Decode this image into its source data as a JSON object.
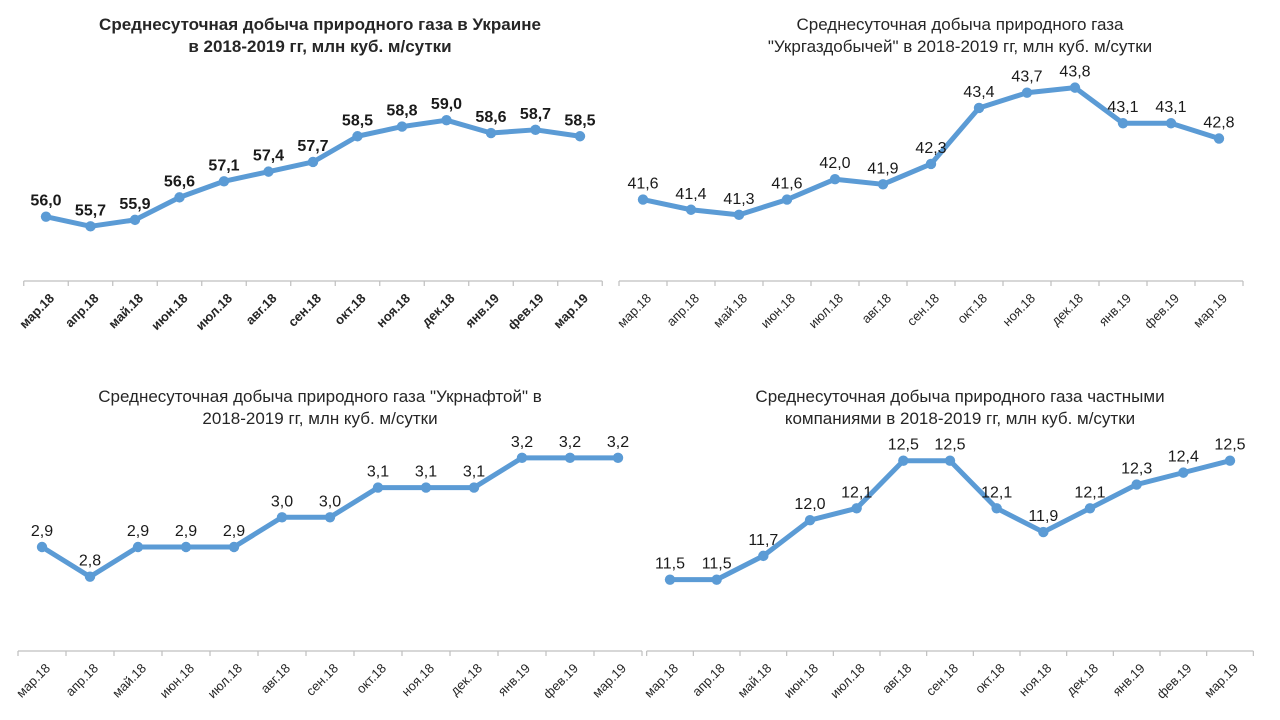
{
  "page": {
    "background": "#FFFFFF",
    "layout": "2x2 grid of line charts",
    "decimal_separator": ","
  },
  "colors": {
    "line": "#5B9BD5",
    "axis": "#BFBFBF",
    "title_text": "#262626",
    "label_text": "#1A1A1A"
  },
  "chart_data": [
    {
      "type": "line",
      "title": "Среднесуточная добыча природного газа в Украине в 2018-2019 гг, млн куб. м/сутки",
      "title_lines": [
        "Среднесуточная добыча природного газа в Украине",
        "в 2018-2019 гг, млн куб. м/сутки"
      ],
      "categories": [
        "мар.18",
        "апр.18",
        "май.18",
        "июн.18",
        "июл.18",
        "авг.18",
        "сен.18",
        "окт.18",
        "ноя.18",
        "дек.18",
        "янв.19",
        "фев.19",
        "мар.19"
      ],
      "values": [
        56.0,
        55.7,
        55.9,
        56.6,
        57.1,
        57.4,
        57.7,
        58.5,
        58.8,
        59.0,
        58.6,
        58.7,
        58.5
      ],
      "xlabel": "",
      "ylabel": "",
      "ylim": [
        54,
        60
      ],
      "grid": false,
      "legend": "none",
      "line_color": "#5B9BD5",
      "marker": "circle",
      "data_labels": "above",
      "bold_style": true
    },
    {
      "type": "line",
      "title": "Среднесуточная добыча природного газа \"Укргаздобычей\" в 2018-2019 гг, млн куб. м/сутки",
      "title_lines": [
        "Среднесуточная добыча природного газа",
        "\"Укргаздобычей\" в 2018-2019 гг, млн куб. м/сутки"
      ],
      "categories": [
        "мар.18",
        "апр.18",
        "май.18",
        "июн.18",
        "июл.18",
        "авг.18",
        "сен.18",
        "окт.18",
        "ноя.18",
        "дек.18",
        "янв.19",
        "фев.19",
        "мар.19"
      ],
      "values": [
        41.6,
        41.4,
        41.3,
        41.6,
        42.0,
        41.9,
        42.3,
        43.4,
        43.7,
        43.8,
        43.1,
        43.1,
        42.8
      ],
      "xlabel": "",
      "ylabel": "",
      "ylim": [
        40,
        44.5
      ],
      "grid": false,
      "legend": "none",
      "line_color": "#5B9BD5",
      "marker": "circle",
      "data_labels": "above",
      "bold_style": false
    },
    {
      "type": "line",
      "title": "Среднесуточная добыча природного газа \"Укрнафтой\" в 2018-2019 гг, млн куб. м/сутки",
      "title_lines": [
        "Среднесуточная добыча природного газа \"Укрнафтой\" в",
        "2018-2019 гг, млн куб. м/сутки"
      ],
      "categories": [
        "мар.18",
        "апр.18",
        "май.18",
        "июн.18",
        "июл.18",
        "авг.18",
        "сен.18",
        "окт.18",
        "ноя.18",
        "дек.18",
        "янв.19",
        "фев.19",
        "мар.19"
      ],
      "values": [
        2.9,
        2.8,
        2.9,
        2.9,
        2.9,
        3.0,
        3.0,
        3.1,
        3.1,
        3.1,
        3.2,
        3.2,
        3.2
      ],
      "xlabel": "",
      "ylabel": "",
      "ylim": [
        2.55,
        3.25
      ],
      "grid": false,
      "legend": "none",
      "line_color": "#5B9BD5",
      "marker": "circle",
      "data_labels": "above",
      "bold_style": false
    },
    {
      "type": "line",
      "title": "Среднесуточная добыча природного газа частными компаниями в 2018-2019 гг, млн куб. м/сутки",
      "title_lines": [
        "Среднесуточная добыча природного газа частными",
        "компаниями в 2018-2019 гг, млн куб. м/сутки"
      ],
      "categories": [
        "мар.18",
        "апр.18",
        "май.18",
        "июн.18",
        "июл.18",
        "авг.18",
        "сен.18",
        "окт.18",
        "ноя.18",
        "дек.18",
        "янв.19",
        "фев.19",
        "мар.19"
      ],
      "values": [
        11.5,
        11.5,
        11.7,
        12.0,
        12.1,
        12.5,
        12.5,
        12.1,
        11.9,
        12.1,
        12.3,
        12.4,
        12.5
      ],
      "xlabel": "",
      "ylabel": "",
      "ylim": [
        10.9,
        12.75
      ],
      "grid": false,
      "legend": "none",
      "line_color": "#5B9BD5",
      "marker": "circle",
      "data_labels": "above",
      "bold_style": false
    }
  ]
}
